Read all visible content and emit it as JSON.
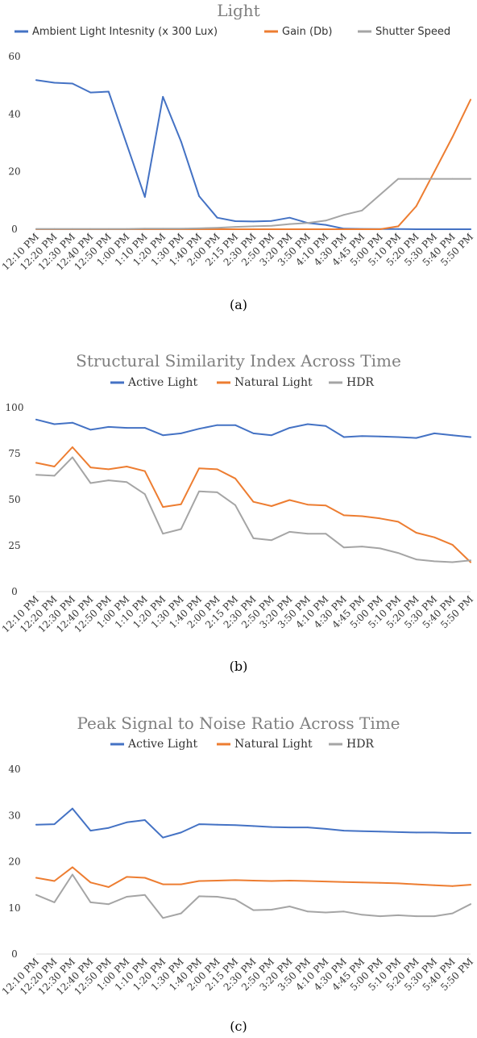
{
  "colors": {
    "series1": "#4472c4",
    "series2": "#ed7d31",
    "series3": "#a5a5a5",
    "title": "#7f7f7f",
    "axis": "#d9d9d9"
  },
  "captions": {
    "a": "(a)",
    "b": "(b)",
    "c": "(c)"
  },
  "chart_data": [
    {
      "type": "line",
      "title": "Light",
      "ylim": [
        0,
        60
      ],
      "yticks": [
        "0",
        "20",
        "40",
        "60"
      ],
      "legend_position": "top",
      "grid": false,
      "categories": [
        "12:10 PM",
        "12:20 PM",
        "12:30 PM",
        "12:40 PM",
        "12:50 PM",
        "1:00 PM",
        "1:10 PM",
        "1:20 PM",
        "1:30 PM",
        "1:40 PM",
        "2:00 PM",
        "2:15 PM",
        "2:30 PM",
        "2:50 PM",
        "3:20 PM",
        "3:50 PM",
        "4:10 PM",
        "4:30 PM",
        "4:45 PM",
        "5:00 PM",
        "5:10 PM",
        "5:20 PM",
        "5:30 PM",
        "5:40 PM",
        "5:50 PM"
      ],
      "series": [
        {
          "name": "Ambient Light Intesnity (x 300 Lux)",
          "values": [
            51.8,
            50.9,
            50.6,
            47.5,
            47.8,
            29.5,
            11.2,
            46,
            30.5,
            11.5,
            4,
            2.8,
            2.7,
            2.9,
            4,
            2.2,
            1.5,
            0.2,
            0.1,
            0.05,
            0.05,
            0,
            0,
            0,
            0
          ]
        },
        {
          "name": "Gain (Db)",
          "values": [
            0,
            0,
            0,
            0,
            0,
            0,
            0,
            0,
            0,
            0,
            0,
            0,
            0,
            0,
            0,
            0,
            0,
            0,
            0,
            0,
            1,
            8,
            20,
            32,
            45
          ]
        },
        {
          "name": "Shutter Speed",
          "values": [
            0.1,
            0.1,
            0.1,
            0.1,
            0.1,
            0.1,
            0.2,
            0.2,
            0.2,
            0.3,
            0.5,
            0.8,
            1,
            1.2,
            1.8,
            2.2,
            3,
            5,
            6.5,
            12,
            17.5,
            17.5,
            17.5,
            17.5,
            17.5
          ]
        }
      ]
    },
    {
      "type": "line",
      "title": "Structural Similarity Index Across Time",
      "ylim": [
        0,
        100
      ],
      "yticks": [
        "0",
        "25",
        "50",
        "75",
        "100"
      ],
      "legend_position": "top",
      "grid": false,
      "categories": [
        "12:10 PM",
        "12:20 PM",
        "12:30 PM",
        "12:40 PM",
        "12:50 PM",
        "1:00 PM",
        "1:10 PM",
        "1:20 PM",
        "1:30 PM",
        "1:40 PM",
        "2:00 PM",
        "2:15 PM",
        "2:30 PM",
        "2:50 PM",
        "3:20 PM",
        "3:50 PM",
        "4:10 PM",
        "4:30 PM",
        "4:45 PM",
        "5:00 PM",
        "5:10 PM",
        "5:20 PM",
        "5:30 PM",
        "5:40 PM",
        "5:50 PM"
      ],
      "series": [
        {
          "name": "Active Light",
          "values": [
            93.5,
            91,
            91.8,
            88,
            89.5,
            89,
            89,
            85,
            86,
            88.5,
            90.5,
            90.5,
            86,
            85,
            89,
            91,
            90,
            84,
            84.5,
            84.3,
            84,
            83.5,
            86,
            85,
            84
          ]
        },
        {
          "name": "Natural Light",
          "values": [
            70,
            68,
            78.5,
            67.5,
            66.5,
            68,
            65.5,
            46,
            47.5,
            67,
            66.5,
            61.5,
            48.8,
            46.5,
            49.8,
            47.3,
            46.8,
            41.5,
            41,
            39.8,
            38,
            32,
            29.5,
            25.5,
            16
          ]
        },
        {
          "name": "HDR",
          "values": [
            63.5,
            63,
            73,
            59,
            60.5,
            59.5,
            53,
            31.5,
            34,
            54.5,
            54,
            47,
            29,
            28,
            32.5,
            31.5,
            31.5,
            24,
            24.5,
            23.5,
            21,
            17.5,
            16.5,
            16,
            17
          ]
        }
      ]
    },
    {
      "type": "line",
      "title": "Peak Signal to Noise Ratio Across Time",
      "ylim": [
        0,
        40
      ],
      "yticks": [
        "0",
        "10",
        "20",
        "30",
        "40"
      ],
      "legend_position": "top",
      "grid": false,
      "categories": [
        "12:10 PM",
        "12:20 PM",
        "12:30 PM",
        "12:40 PM",
        "12:50 PM",
        "1:00 PM",
        "1:10 PM",
        "1:20 PM",
        "1:30 PM",
        "1:40 PM",
        "2:00 PM",
        "2:15 PM",
        "2:30 PM",
        "2:50 PM",
        "3:20 PM",
        "3:50 PM",
        "4:10 PM",
        "4:30 PM",
        "4:45 PM",
        "5:00 PM",
        "5:10 PM",
        "5:20 PM",
        "5:30 PM",
        "5:40 PM",
        "5:50 PM"
      ],
      "series": [
        {
          "name": "Active Light",
          "values": [
            28,
            28.1,
            31.5,
            26.7,
            27.3,
            28.5,
            29,
            25.2,
            26.3,
            28.1,
            28,
            27.9,
            27.7,
            27.5,
            27.4,
            27.4,
            27.1,
            26.7,
            26.6,
            26.5,
            26.4,
            26.3,
            26.3,
            26.2,
            26.2
          ]
        },
        {
          "name": "Natural Light",
          "values": [
            16.5,
            15.8,
            18.8,
            15.5,
            14.5,
            16.7,
            16.5,
            15.1,
            15.1,
            15.8,
            15.9,
            16,
            15.9,
            15.8,
            15.9,
            15.8,
            15.7,
            15.6,
            15.5,
            15.4,
            15.3,
            15.1,
            14.9,
            14.7,
            15
          ]
        },
        {
          "name": "HDR",
          "values": [
            12.8,
            11.2,
            17.2,
            11.2,
            10.8,
            12.4,
            12.8,
            7.8,
            8.8,
            12.5,
            12.4,
            11.8,
            9.5,
            9.6,
            10.3,
            9.2,
            9,
            9.2,
            8.5,
            8.2,
            8.4,
            8.2,
            8.2,
            8.8,
            10.8
          ]
        }
      ]
    }
  ]
}
